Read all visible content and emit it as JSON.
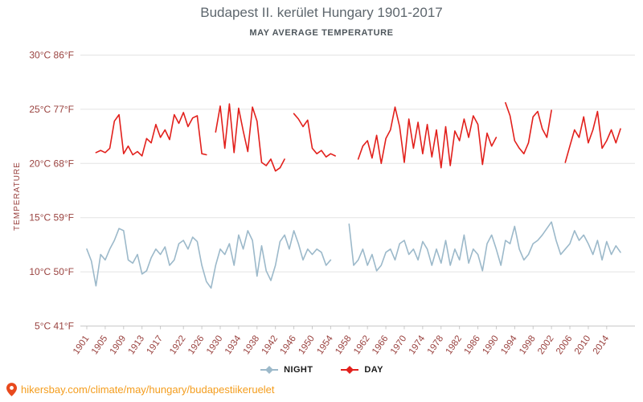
{
  "page": {
    "title": "Budapest II. kerület Hungary 1901-2017",
    "subtitle": "MAY AVERAGE TEMPERATURE"
  },
  "footer": {
    "url": "hikersbay.com/climate/may/hungary/budapestiikeruelet"
  },
  "colors": {
    "title": "#5d666d",
    "subtitle": "#4e565c",
    "axis_label": "#9a4340",
    "grid": "#e3e3e3",
    "axis_line": "#c8c8c8",
    "night": "#9cb9ca",
    "day": "#e2201c",
    "legend_text": "#1a1a1a",
    "footer_link": "#f49d1d",
    "pin": "#e8491d"
  },
  "chart_data": {
    "type": "line",
    "title": "Budapest II. kerület Hungary 1901-2017",
    "subtitle": "MAY AVERAGE TEMPERATURE",
    "ylabel": "TEMPERATURE",
    "grid": true,
    "legend_position": "bottom",
    "ylim": [
      5,
      30
    ],
    "x_start_year": 1901,
    "x_end_year": 2017,
    "y_ticks": [
      {
        "c": "30°C",
        "f": "86°F",
        "value": 30
      },
      {
        "c": "25°C",
        "f": "77°F",
        "value": 25
      },
      {
        "c": "20°C",
        "f": "68°F",
        "value": 20
      },
      {
        "c": "15°C",
        "f": "59°F",
        "value": 15
      },
      {
        "c": "10°C",
        "f": "50°F",
        "value": 10
      },
      {
        "c": "5°C",
        "f": "41°F",
        "value": 5
      }
    ],
    "x_tick_labels": [
      "1901",
      "1905",
      "1909",
      "1913",
      "1917",
      "1922",
      "1926",
      "1930",
      "1934",
      "1938",
      "1942",
      "1946",
      "1950",
      "1954",
      "1958",
      "1962",
      "1966",
      "1970",
      "1974",
      "1978",
      "1982",
      "1986",
      "1990",
      "1994",
      "1998",
      "2002",
      "2006",
      "2010",
      "2014"
    ],
    "series": [
      {
        "name": "NIGHT",
        "color": "#9cb9ca",
        "values": [
          12.1,
          11.0,
          8.7,
          11.6,
          11.1,
          12.1,
          12.9,
          14.0,
          13.8,
          11.1,
          10.8,
          11.6,
          9.8,
          10.1,
          11.3,
          12.1,
          11.6,
          12.3,
          10.6,
          11.1,
          12.6,
          12.9,
          12.1,
          13.2,
          12.8,
          10.6,
          9.1,
          8.5,
          10.6,
          12.1,
          11.6,
          12.6,
          10.6,
          13.4,
          12.1,
          13.8,
          12.9,
          9.6,
          12.4,
          10.1,
          9.2,
          10.6,
          12.8,
          13.4,
          12.1,
          13.8,
          12.6,
          11.1,
          12.1,
          11.6,
          12.1,
          11.8,
          10.6,
          11.1,
          null,
          null,
          null,
          14.4,
          10.6,
          11.1,
          12.1,
          10.6,
          11.6,
          10.1,
          10.6,
          11.8,
          12.1,
          11.1,
          12.6,
          12.9,
          11.6,
          12.1,
          11.1,
          12.8,
          12.1,
          10.6,
          12.1,
          10.8,
          12.9,
          10.6,
          12.1,
          11.1,
          13.4,
          10.8,
          12.1,
          11.6,
          10.1,
          12.6,
          13.4,
          12.1,
          10.6,
          12.9,
          12.6,
          14.2,
          12.1,
          11.1,
          11.6,
          12.6,
          12.9,
          13.4,
          14.0,
          14.6,
          12.9,
          11.6,
          12.1,
          12.6,
          13.8,
          12.9,
          13.4,
          12.6,
          11.6,
          12.9,
          11.1,
          12.8,
          11.6,
          12.4,
          11.8
        ]
      },
      {
        "name": "DAY",
        "color": "#e2201c",
        "values": [
          null,
          null,
          21.0,
          21.2,
          21.0,
          21.4,
          23.9,
          24.5,
          20.9,
          21.6,
          20.8,
          21.1,
          20.7,
          22.3,
          21.9,
          23.6,
          22.4,
          23.1,
          22.2,
          24.5,
          23.7,
          24.7,
          23.4,
          24.2,
          24.4,
          20.9,
          20.8,
          null,
          22.9,
          25.3,
          21.4,
          25.5,
          21.0,
          25.1,
          23.0,
          21.1,
          25.2,
          23.9,
          20.1,
          19.8,
          20.4,
          19.3,
          19.6,
          20.4,
          null,
          24.6,
          24.1,
          23.4,
          24.0,
          21.4,
          20.9,
          21.2,
          20.6,
          20.9,
          20.7,
          null,
          null,
          null,
          null,
          20.4,
          21.6,
          22.1,
          20.5,
          22.6,
          20.0,
          22.3,
          23.1,
          25.2,
          23.4,
          20.1,
          24.1,
          21.4,
          23.8,
          20.9,
          23.6,
          20.6,
          23.1,
          19.6,
          23.4,
          19.8,
          23.0,
          22.1,
          24.1,
          22.4,
          24.4,
          23.6,
          19.9,
          22.8,
          21.6,
          22.4,
          null,
          25.6,
          24.4,
          22.1,
          21.4,
          20.9,
          21.9,
          24.3,
          24.8,
          23.2,
          22.4,
          24.9,
          null,
          null,
          20.1,
          21.6,
          23.1,
          22.4,
          24.3,
          21.9,
          23.1,
          24.8,
          21.4,
          22.1,
          23.1,
          21.9,
          23.2
        ]
      }
    ]
  }
}
